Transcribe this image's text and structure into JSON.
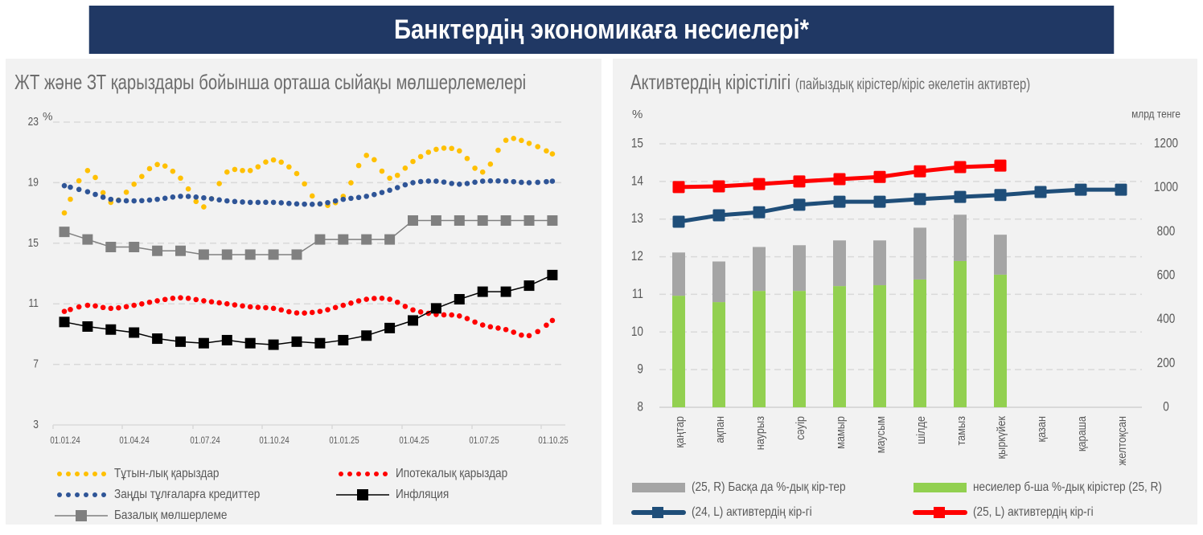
{
  "header": {
    "title": "Банктердің экономикаға несиелері*"
  },
  "chart_data": [
    {
      "type": "line",
      "title": "ЖТ және ЗТ қарыздары бойынша орташа сыйақы мөлшерлемелері",
      "ylabel": "%",
      "xlabel": "",
      "ylim": [
        3,
        23
      ],
      "yticks": [
        "23",
        "19",
        "15",
        "11",
        "7",
        "3"
      ],
      "xticks": [
        "01.01.24",
        "01.04.24",
        "01.07.24",
        "01.10.24",
        "01.01.25",
        "01.04.25",
        "01.07.25",
        "01.10.25"
      ],
      "grid": true,
      "legend_position": "bottom",
      "x": [
        "01.24",
        "02.24",
        "03.24",
        "04.24",
        "05.24",
        "06.24",
        "07.24",
        "08.24",
        "09.24",
        "10.24",
        "11.24",
        "12.24",
        "01.25",
        "02.25",
        "03.25",
        "04.25",
        "05.25",
        "06.25",
        "07.25",
        "08.25",
        "09.25",
        "10.25"
      ],
      "series": [
        {
          "name": "Тұтын-лық қарыздар",
          "style": "dotted",
          "color": "#ffc000",
          "values": [
            17.0,
            19.8,
            17.7,
            18.9,
            20.2,
            19.3,
            17.4,
            19.7,
            19.8,
            20.5,
            19.6,
            17.6,
            18.1,
            20.8,
            19.3,
            20.4,
            21.2,
            21.1,
            19.7,
            21.8,
            21.6,
            20.9
          ]
        },
        {
          "name": "Заңды тұлғаларға кредиттер",
          "style": "dotted",
          "color": "#2f5597",
          "values": [
            18.8,
            18.4,
            17.9,
            17.8,
            17.9,
            18.1,
            18.0,
            17.8,
            17.7,
            17.7,
            17.6,
            17.6,
            17.9,
            18.1,
            18.5,
            19.0,
            19.1,
            18.9,
            19.1,
            19.1,
            19.0,
            19.1
          ]
        },
        {
          "name": "Ипотекалық қарыздар",
          "style": "dotted",
          "color": "#ff0000",
          "values": [
            10.5,
            10.9,
            10.7,
            10.9,
            11.2,
            11.4,
            11.2,
            11.0,
            10.8,
            10.7,
            10.4,
            10.5,
            10.9,
            11.3,
            11.3,
            10.6,
            10.3,
            10.2,
            9.6,
            9.3,
            8.9,
            9.9
          ]
        },
        {
          "name": "Инфляция",
          "style": "line-square",
          "color": "#000000",
          "values": [
            9.8,
            9.5,
            9.3,
            9.1,
            8.7,
            8.5,
            8.4,
            8.6,
            8.4,
            8.3,
            8.5,
            8.4,
            8.6,
            8.9,
            9.4,
            9.9,
            10.7,
            11.3,
            11.8,
            11.8,
            12.2,
            12.9
          ]
        },
        {
          "name": "Базалық мөлшерлеме",
          "style": "line-square",
          "color": "#7f7f7f",
          "values": [
            15.75,
            15.25,
            14.75,
            14.75,
            14.5,
            14.5,
            14.25,
            14.25,
            14.25,
            14.25,
            14.25,
            15.25,
            15.25,
            15.25,
            15.25,
            16.5,
            16.5,
            16.5,
            16.5,
            16.5,
            16.5,
            16.5
          ]
        }
      ]
    },
    {
      "type": "bar",
      "title": "Активтердің кірістілігі",
      "subtitle": "(пайыздық кірістер/кіріс әкелетін активтер)",
      "ylabel": "%",
      "ylabel_right": "млрд тенге",
      "ylim": [
        8,
        15
      ],
      "ylim_right": [
        0,
        1200
      ],
      "yticks": [
        "15",
        "14",
        "13",
        "12",
        "11",
        "10",
        "9",
        "8"
      ],
      "yticks_right": [
        "1200",
        "1000",
        "800",
        "600",
        "400",
        "200",
        "0"
      ],
      "grid": true,
      "legend_position": "bottom",
      "categories": [
        "қаңтар",
        "ақпан",
        "наурыз",
        "сәуір",
        "мамыр",
        "маусым",
        "шілде",
        "тамыз",
        "қыркүйек",
        "қазан",
        "қараша",
        "желтоқсан"
      ],
      "series": [
        {
          "name": "несиелер б-ша %-дық кірістер (25, R)",
          "kind": "bar-stacked",
          "axis": "right",
          "color": "#92d050",
          "values": [
            508,
            479,
            530,
            530,
            552,
            556,
            582,
            666,
            604,
            null,
            null,
            null
          ]
        },
        {
          "name": "(25, R) Басқа да %-дық кір-тер",
          "kind": "bar-stacked",
          "axis": "right",
          "color": "#a5a5a5",
          "values": [
            197,
            185,
            200,
            208,
            208,
            204,
            236,
            211,
            182,
            null,
            null,
            null
          ]
        },
        {
          "name": "(24, L) активтердің кір-гі",
          "kind": "line-square",
          "axis": "left",
          "color": "#1f4e79",
          "values": [
            12.93,
            13.1,
            13.18,
            13.38,
            13.46,
            13.46,
            13.53,
            13.59,
            13.64,
            13.72,
            13.78,
            13.78
          ]
        },
        {
          "name": "(25, L) активтердің кір-гі",
          "kind": "line-square",
          "axis": "left",
          "color": "#ff0000",
          "values": [
            13.85,
            13.87,
            13.93,
            14.0,
            14.06,
            14.12,
            14.27,
            14.38,
            14.42,
            null,
            null,
            null
          ]
        }
      ]
    }
  ],
  "legend_left": [
    {
      "label": "Тұтын-лық қарыздар",
      "marker": "dots",
      "color": "#ffc000"
    },
    {
      "label": "Ипотекалық қарыздар",
      "marker": "dots",
      "color": "#ff0000"
    },
    {
      "label": "Заңды тұлғаларға кредиттер",
      "marker": "dots",
      "color": "#2f5597"
    },
    {
      "label": "Инфляция",
      "marker": "line-square",
      "color": "#000000"
    },
    {
      "label": "Базалық мөлшерлеме",
      "marker": "line-square",
      "color": "#7f7f7f"
    }
  ],
  "legend_right": [
    {
      "label": "(25, R) Басқа да %-дық кір-тер",
      "marker": "bar",
      "color": "#a5a5a5"
    },
    {
      "label": "несиелер б-ша %-дық кірістер (25, R)",
      "marker": "bar",
      "color": "#92d050"
    },
    {
      "label": "(24, L) активтердің кір-гі",
      "marker": "thick-line-square",
      "color": "#1f4e79"
    },
    {
      "label": "(25, L) активтердің кір-гі",
      "marker": "thick-line-square",
      "color": "#ff0000"
    }
  ]
}
